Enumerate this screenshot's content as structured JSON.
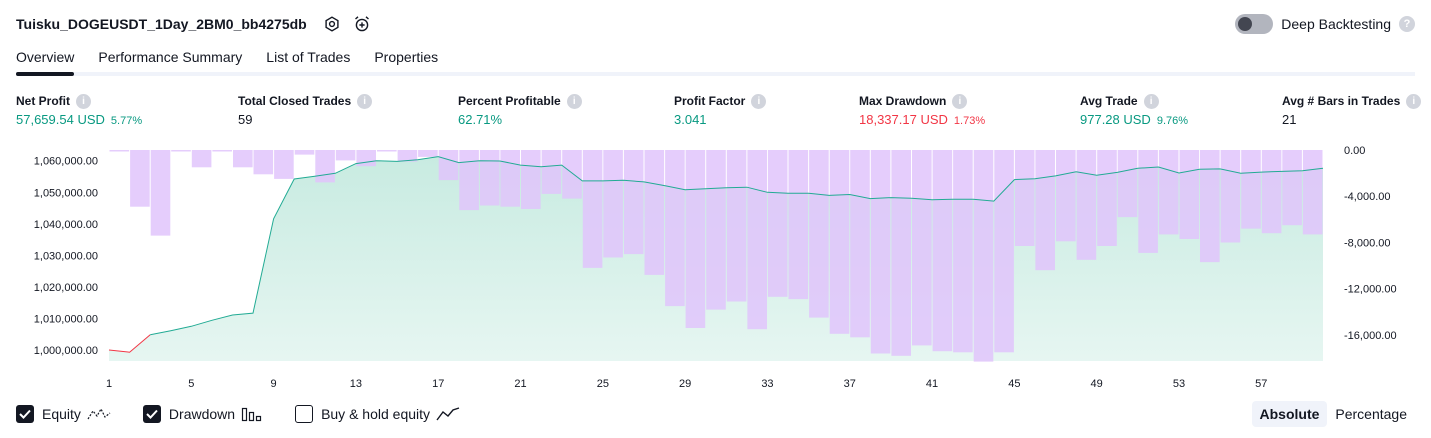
{
  "header": {
    "strategy_name": "Tuisku_DOGEUSDT_1Day_2BM0_bb4275db",
    "icons": [
      "settings-icon",
      "alarm-add-icon"
    ],
    "deep_backtesting_label": "Deep Backtesting",
    "deep_backtesting_enabled": false
  },
  "tabs": [
    {
      "label": "Overview",
      "active": true
    },
    {
      "label": "Performance Summary",
      "active": false
    },
    {
      "label": "List of Trades",
      "active": false
    },
    {
      "label": "Properties",
      "active": false
    }
  ],
  "metrics": [
    {
      "label": "Net Profit",
      "value": "57,659.54 USD",
      "pct": "5.77%",
      "tone": "pos"
    },
    {
      "label": "Total Closed Trades",
      "value": "59",
      "pct": "",
      "tone": "neu"
    },
    {
      "label": "Percent Profitable",
      "value": "62.71%",
      "pct": "",
      "tone": "pos"
    },
    {
      "label": "Profit Factor",
      "value": "3.041",
      "pct": "",
      "tone": "pos"
    },
    {
      "label": "Max Drawdown",
      "value": "18,337.17 USD",
      "pct": "1.73%",
      "tone": "neg"
    },
    {
      "label": "Avg Trade",
      "value": "977.28 USD",
      "pct": "9.76%",
      "tone": "pos"
    },
    {
      "label": "Avg # Bars in Trades",
      "value": "21",
      "pct": "",
      "tone": "neu"
    }
  ],
  "legend": [
    {
      "label": "Equity",
      "checked": true,
      "icon": "equity-line-icon"
    },
    {
      "label": "Drawdown",
      "checked": true,
      "icon": "drawdown-bars-icon"
    },
    {
      "label": "Buy & hold equity",
      "checked": false,
      "icon": "buy-hold-line-icon"
    }
  ],
  "modes": [
    {
      "label": "Absolute",
      "active": true
    },
    {
      "label": "Percentage",
      "active": false
    }
  ],
  "colors": {
    "equity_line": "#22ab94",
    "equity_line_negative": "#f23645",
    "equity_fill": "#c8ebe1",
    "drawdown_bar": "#e1c4fb",
    "drawdown_overlap": "#b5b8e6",
    "positive": "#089981",
    "negative": "#f23645"
  },
  "chart_data": {
    "type": "area",
    "x_ticks": [
      1,
      5,
      9,
      13,
      17,
      21,
      25,
      29,
      33,
      37,
      41,
      45,
      49,
      53,
      57
    ],
    "x_range": [
      1,
      60
    ],
    "equity_axis": {
      "ticks": [
        1000000,
        1010000,
        1020000,
        1030000,
        1040000,
        1050000,
        1060000
      ],
      "tick_labels": [
        "1,000,000.00",
        "1,010,000.00",
        "1,020,000.00",
        "1,030,000.00",
        "1,040,000.00",
        "1,050,000.00",
        "1,060,000.00"
      ],
      "range": [
        996500,
        1063400
      ],
      "side": "left"
    },
    "drawdown_axis": {
      "ticks": [
        0,
        -4000,
        -8000,
        -12000,
        -16000
      ],
      "tick_labels": [
        "0.00",
        "-4,000.00",
        "-8,000.00",
        "-12,000.00",
        "-16,000.00"
      ],
      "range": [
        -18250,
        0
      ],
      "side": "right"
    },
    "series": [
      {
        "name": "Equity",
        "type": "area",
        "values": [
          1000000,
          999300,
          1004800,
          1006100,
          1007500,
          1009400,
          1011100,
          1011700,
          1041600,
          1054200,
          1055100,
          1056000,
          1059100,
          1060000,
          1059800,
          1060300,
          1061300,
          1059400,
          1060000,
          1059900,
          1058600,
          1058100,
          1058600,
          1053600,
          1053600,
          1053800,
          1053300,
          1052100,
          1050800,
          1051100,
          1051400,
          1051600,
          1050000,
          1049700,
          1049700,
          1049000,
          1049300,
          1048000,
          1048300,
          1048100,
          1047600,
          1047800,
          1047800,
          1047200,
          1054000,
          1054300,
          1055200,
          1056500,
          1055400,
          1056300,
          1057600,
          1058000,
          1056100,
          1057300,
          1057400,
          1056000,
          1056400,
          1056600,
          1056800,
          1057600
        ]
      },
      {
        "name": "Drawdown",
        "type": "bar",
        "values": [
          0,
          -4900,
          -7400,
          0,
          -1500,
          0,
          -1500,
          -2100,
          -2500,
          -400,
          -2800,
          -900,
          -1400,
          0,
          -1000,
          -600,
          -2600,
          -5200,
          -4800,
          -4900,
          -5100,
          -3800,
          -4200,
          -10200,
          -9300,
          -9000,
          -10800,
          -13500,
          -15400,
          -13800,
          -13100,
          -15500,
          -12700,
          -12900,
          -14500,
          -15900,
          -16200,
          -17600,
          -17800,
          -16900,
          -17400,
          -17500,
          -18300,
          -17500,
          -8300,
          -10400,
          -7900,
          -9500,
          -8300,
          -5800,
          -8900,
          -7300,
          -7700,
          -9700,
          -8000,
          -6800,
          -7200,
          -6500,
          -7300
        ]
      }
    ],
    "grid": false
  }
}
